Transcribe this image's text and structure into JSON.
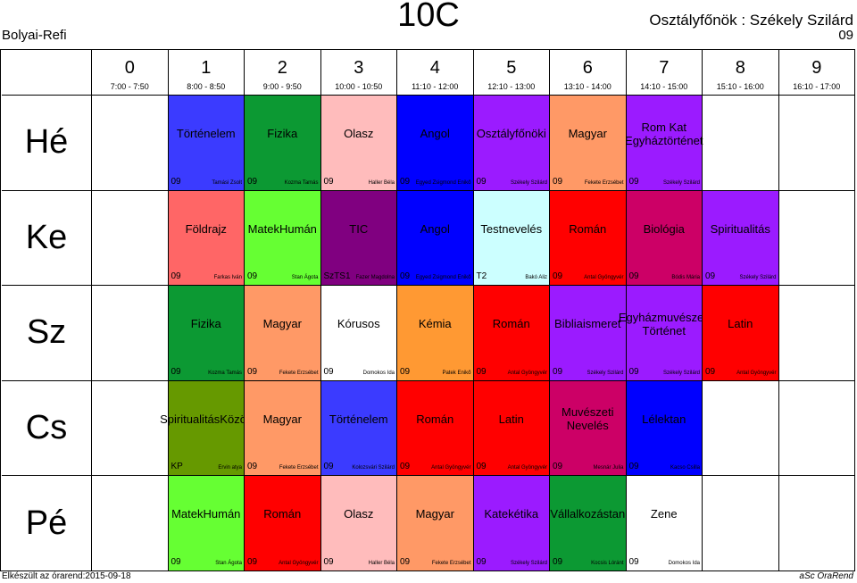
{
  "school": "Bolyai-Refi",
  "class_name": "10C",
  "class_master": "Osztályfőnök : Székely Szilárd",
  "class_master_room": "09",
  "periods": [
    {
      "num": "0",
      "time": "7:00 - 7:50"
    },
    {
      "num": "1",
      "time": "8:00 - 8:50"
    },
    {
      "num": "2",
      "time": "9:00 - 9:50"
    },
    {
      "num": "3",
      "time": "10:00 - 10:50"
    },
    {
      "num": "4",
      "time": "11:10 - 12:00"
    },
    {
      "num": "5",
      "time": "12:10 - 13:00"
    },
    {
      "num": "6",
      "time": "13:10 - 14:00"
    },
    {
      "num": "7",
      "time": "14:10 - 15:00"
    },
    {
      "num": "8",
      "time": "15:10 - 16:00"
    },
    {
      "num": "9",
      "time": "16:10 - 17:00"
    }
  ],
  "days": [
    {
      "name": "Hé",
      "lessons": [
        {
          "period": 1,
          "subject": "Történelem",
          "room": "09",
          "teacher": "Tamási Zsolt",
          "color": "#3b3bff"
        },
        {
          "period": 2,
          "subject": "Fizika",
          "room": "09",
          "teacher": "Kozma Tamás",
          "color": "#0c9933"
        },
        {
          "period": 3,
          "subject": "Olasz",
          "room": "09",
          "teacher": "Haller Béla",
          "color": "#ffbcbc"
        },
        {
          "period": 4,
          "subject": "Angol",
          "room": "09",
          "teacher": "Egyed Zsigmond Enikő",
          "color": "#0000ff"
        },
        {
          "period": 5,
          "subject": "Osztályfőnöki",
          "room": "09",
          "teacher": "Székely Szilárd",
          "color": "#9b1bff"
        },
        {
          "period": 6,
          "subject": "Magyar",
          "room": "09",
          "teacher": "Fekete Erzsébet",
          "color": "#ff9966"
        },
        {
          "period": 7,
          "subject": "Rom Kat Egyháztörténet",
          "room": "09",
          "teacher": "Székely Szilárd",
          "color": "#9b1bff"
        }
      ]
    },
    {
      "name": "Ke",
      "lessons": [
        {
          "period": 1,
          "subject": "Földrajz",
          "room": "09",
          "teacher": "Farkas Iván",
          "color": "#ff6666"
        },
        {
          "period": 2,
          "subject": "MatekHumán",
          "room": "09",
          "teacher": "Stan Ágota",
          "color": "#66ff33"
        },
        {
          "period": 3,
          "subject": "TIC",
          "room": "SzTS1",
          "teacher": "Fazer Magdolna",
          "color": "#800080"
        },
        {
          "period": 4,
          "subject": "Angol",
          "room": "09",
          "teacher": "Egyed Zsigmond Enikő",
          "color": "#0000ff"
        },
        {
          "period": 5,
          "subject": "Testnevelés",
          "room": "T2",
          "teacher": "Bakó Aliz",
          "color": "#ccffff"
        },
        {
          "period": 6,
          "subject": "Román",
          "room": "09",
          "teacher": "Antal Gyöngyvér",
          "color": "#ff0000"
        },
        {
          "period": 7,
          "subject": "Biológia",
          "room": "09",
          "teacher": "Bódis Mária",
          "color": "#cc0066"
        },
        {
          "period": 8,
          "subject": "Spiritualitás",
          "room": "09",
          "teacher": "Székely Szilárd",
          "color": "#9b1bff"
        }
      ]
    },
    {
      "name": "Sz",
      "lessons": [
        {
          "period": 1,
          "subject": "Fizika",
          "room": "09",
          "teacher": "Kozma Tamás",
          "color": "#0c9933"
        },
        {
          "period": 2,
          "subject": "Magyar",
          "room": "09",
          "teacher": "Fekete Erzsébet",
          "color": "#ff9966"
        },
        {
          "period": 3,
          "subject": "Kórusos",
          "room": "09",
          "teacher": "Domokos Ida",
          "color": "#ffffff"
        },
        {
          "period": 4,
          "subject": "Kémia",
          "room": "09",
          "teacher": "Patek Enikő",
          "color": "#ff9933"
        },
        {
          "period": 5,
          "subject": "Román",
          "room": "09",
          "teacher": "Antal Gyöngyvér",
          "color": "#ff0000"
        },
        {
          "period": 6,
          "subject": "Bibliaismeret",
          "room": "09",
          "teacher": "Székely Szilárd",
          "color": "#9b1bff"
        },
        {
          "period": 7,
          "subject": "Egyházmuvészeti Történet",
          "room": "09",
          "teacher": "Székely Szilárd",
          "color": "#9b1bff"
        },
        {
          "period": 8,
          "subject": "Latin",
          "room": "09",
          "teacher": "Antal Gyöngyvér",
          "color": "#ff0000"
        }
      ]
    },
    {
      "name": "Cs",
      "lessons": [
        {
          "period": 1,
          "subject": "SpiritualitásKözös",
          "room": "KP",
          "teacher": "Ervin atya",
          "color": "#669900"
        },
        {
          "period": 2,
          "subject": "Magyar",
          "room": "09",
          "teacher": "Fekete Erzsébet",
          "color": "#ff9966"
        },
        {
          "period": 3,
          "subject": "Történelem",
          "room": "09",
          "teacher": "Kolozsvári Szilárd",
          "color": "#3b3bff"
        },
        {
          "period": 4,
          "subject": "Román",
          "room": "09",
          "teacher": "Antal Gyöngyvér",
          "color": "#ff0000"
        },
        {
          "period": 5,
          "subject": "Latin",
          "room": "09",
          "teacher": "Antal Gyöngyvér",
          "color": "#ff0000"
        },
        {
          "period": 6,
          "subject": "Muvészeti Nevelés",
          "room": "09",
          "teacher": "Mesnár Julia",
          "color": "#cc0066"
        },
        {
          "period": 7,
          "subject": "Lélektan",
          "room": "09",
          "teacher": "Kacso Csilla",
          "color": "#0000ff"
        }
      ]
    },
    {
      "name": "Pé",
      "lessons": [
        {
          "period": 1,
          "subject": "MatekHumán",
          "room": "09",
          "teacher": "Stan Ágota",
          "color": "#66ff33"
        },
        {
          "period": 2,
          "subject": "Román",
          "room": "09",
          "teacher": "Antal Gyöngyvér",
          "color": "#ff0000"
        },
        {
          "period": 3,
          "subject": "Olasz",
          "room": "09",
          "teacher": "Haller Béla",
          "color": "#ffbcbc"
        },
        {
          "period": 4,
          "subject": "Magyar",
          "room": "09",
          "teacher": "Fekete Erzsébet",
          "color": "#ff9966"
        },
        {
          "period": 5,
          "subject": "Katekétika",
          "room": "09",
          "teacher": "Székely Szilárd",
          "color": "#9b1bff"
        },
        {
          "period": 6,
          "subject": "Vállalkozástan",
          "room": "09",
          "teacher": "Kocsis Lóránt",
          "color": "#0c9933"
        },
        {
          "period": 7,
          "subject": "Zene",
          "room": "09",
          "teacher": "Domokos Ida",
          "color": "#ffffff"
        }
      ]
    }
  ],
  "footer_left": "Elkészült az órarend:2015-09-18",
  "footer_right": "aSc ÓraRend"
}
